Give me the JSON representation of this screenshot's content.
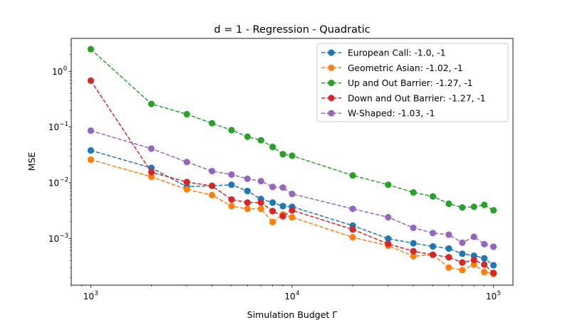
{
  "chart_data": {
    "type": "line",
    "title": "d = 1 - Regression - Quadratic",
    "xlabel": "Simulation Budget Γ",
    "ylabel": "MSE",
    "xscale": "log",
    "yscale": "log",
    "xlim": [
      800,
      125000
    ],
    "ylim": [
      0.000145,
      3.9
    ],
    "x_ticks": [
      {
        "value": 1000,
        "base": "10",
        "exp": "3"
      },
      {
        "value": 10000,
        "base": "10",
        "exp": "4"
      },
      {
        "value": 100000,
        "base": "10",
        "exp": "5"
      }
    ],
    "y_ticks": [
      {
        "value": 0.001,
        "base": "10",
        "exp": "−3"
      },
      {
        "value": 0.01,
        "base": "10",
        "exp": "−2"
      },
      {
        "value": 0.1,
        "base": "10",
        "exp": "−1"
      },
      {
        "value": 1,
        "base": "10",
        "exp": "0"
      }
    ],
    "grid": false,
    "legend_position": "top-right",
    "x": [
      1000,
      2000,
      3000,
      4000,
      5000,
      6000,
      7000,
      8000,
      9000,
      10000,
      20000,
      30000,
      40000,
      50000,
      60000,
      70000,
      80000,
      90000,
      100000
    ],
    "series": [
      {
        "name": "European Call: -1.0, -1",
        "color": "#1f77b4",
        "values": [
          0.038,
          0.0185,
          0.0085,
          0.0088,
          0.0092,
          0.0071,
          0.0051,
          0.0044,
          0.0038,
          0.0037,
          0.0017,
          0.00099,
          0.00082,
          0.00072,
          0.00066,
          0.00053,
          0.00049,
          0.00044,
          0.00033
        ]
      },
      {
        "name": "Geometric Asian: -1.02, -1",
        "color": "#ff7f0e",
        "values": [
          0.026,
          0.0128,
          0.0076,
          0.006,
          0.0038,
          0.0034,
          0.0034,
          0.00197,
          0.0027,
          0.0024,
          0.00105,
          0.00074,
          0.00048,
          0.00051,
          0.0003,
          0.00027,
          0.00034,
          0.00025,
          0.00023
        ]
      },
      {
        "name": "Up and Out Barrier: -1.27, -1",
        "color": "#2ca02c",
        "values": [
          2.5,
          0.26,
          0.17,
          0.117,
          0.088,
          0.067,
          0.058,
          0.044,
          0.0325,
          0.0305,
          0.0135,
          0.0092,
          0.0067,
          0.0057,
          0.0042,
          0.0036,
          0.0037,
          0.004,
          0.0032
        ]
      },
      {
        "name": "Down and Out Barrier: -1.27, -1",
        "color": "#d62728",
        "values": [
          0.68,
          0.0155,
          0.0103,
          0.0088,
          0.005,
          0.0044,
          0.0044,
          0.0031,
          0.0025,
          0.0032,
          0.00145,
          0.0008,
          0.00059,
          0.00051,
          0.00046,
          0.00037,
          0.00041,
          0.00034,
          0.00024
        ]
      },
      {
        "name": "W-Shaped: -1.03, -1",
        "color": "#9467bd",
        "values": [
          0.086,
          0.041,
          0.0235,
          0.0162,
          0.014,
          0.0118,
          0.0107,
          0.0084,
          0.0082,
          0.0063,
          0.0034,
          0.0024,
          0.00155,
          0.00125,
          0.00117,
          0.00084,
          0.00107,
          0.00079,
          0.00071
        ]
      }
    ]
  }
}
